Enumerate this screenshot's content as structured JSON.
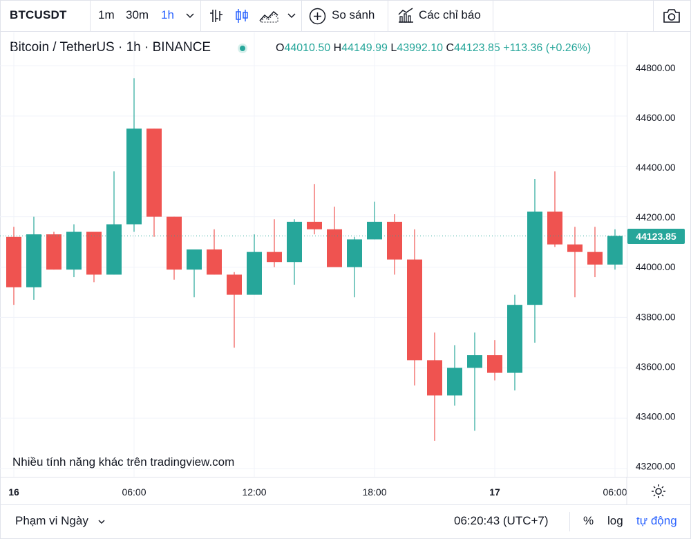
{
  "toolbar": {
    "symbol": "BTCUSDT",
    "intervals": [
      "1m",
      "30m",
      "1h"
    ],
    "active_interval": "1h",
    "compare_label": "So sánh",
    "indicators_label": "Các chỉ báo"
  },
  "legend": {
    "title": "Bitcoin / TetherUS · 1h · BINANCE",
    "open_key": "O",
    "open": "44010.50",
    "high_key": "H",
    "high": "44149.99",
    "low_key": "L",
    "low": "43992.10",
    "close_key": "C",
    "close": "44123.85",
    "change": "+113.36 (+0.26%)"
  },
  "watermark": "Nhiều tính năng khác trên tradingview.com",
  "bottom": {
    "range_label": "Phạm vi Ngày",
    "clock": "06:20:43 (UTC+7)",
    "percent": "%",
    "log": "log",
    "auto": "tự động"
  },
  "colors": {
    "up": "#26a69a",
    "down": "#ef5350",
    "grid": "#f0f3fa",
    "accent": "#2962ff"
  },
  "chart_data": {
    "type": "candlestick",
    "price_labels": [
      "44800.00",
      "44600.00",
      "44400.00",
      "44200.00",
      "44000.00",
      "43800.00",
      "43600.00",
      "43400.00",
      "43200.00"
    ],
    "time_labels": [
      "16",
      "06:00",
      "12:00",
      "18:00",
      "17",
      "06:00"
    ],
    "current_price": "44123.85",
    "ylim": [
      43200,
      44800
    ],
    "candles": [
      {
        "o": 44120,
        "h": 44160,
        "l": 43850,
        "c": 43920
      },
      {
        "o": 43920,
        "h": 44200,
        "l": 43870,
        "c": 44130
      },
      {
        "o": 44130,
        "h": 44140,
        "l": 43990,
        "c": 43990
      },
      {
        "o": 43990,
        "h": 44170,
        "l": 43960,
        "c": 44140
      },
      {
        "o": 44140,
        "h": 44140,
        "l": 43940,
        "c": 43970
      },
      {
        "o": 43970,
        "h": 44380,
        "l": 43970,
        "c": 44170
      },
      {
        "o": 44170,
        "h": 44750,
        "l": 44140,
        "c": 44550
      },
      {
        "o": 44550,
        "h": 44550,
        "l": 44120,
        "c": 44200
      },
      {
        "o": 44200,
        "h": 44200,
        "l": 43950,
        "c": 43990
      },
      {
        "o": 43990,
        "h": 44070,
        "l": 43880,
        "c": 44070
      },
      {
        "o": 44070,
        "h": 44150,
        "l": 43970,
        "c": 43970
      },
      {
        "o": 43970,
        "h": 43980,
        "l": 43680,
        "c": 43890
      },
      {
        "o": 43890,
        "h": 44130,
        "l": 43890,
        "c": 44060
      },
      {
        "o": 44060,
        "h": 44190,
        "l": 44000,
        "c": 44020
      },
      {
        "o": 44020,
        "h": 44190,
        "l": 43930,
        "c": 44180
      },
      {
        "o": 44180,
        "h": 44330,
        "l": 44130,
        "c": 44150
      },
      {
        "o": 44150,
        "h": 44240,
        "l": 44000,
        "c": 44000
      },
      {
        "o": 44000,
        "h": 44120,
        "l": 43880,
        "c": 44110
      },
      {
        "o": 44110,
        "h": 44260,
        "l": 44110,
        "c": 44180
      },
      {
        "o": 44180,
        "h": 44210,
        "l": 43970,
        "c": 44030
      },
      {
        "o": 44030,
        "h": 44150,
        "l": 43530,
        "c": 43630
      },
      {
        "o": 43630,
        "h": 43740,
        "l": 43310,
        "c": 43490
      },
      {
        "o": 43490,
        "h": 43690,
        "l": 43450,
        "c": 43600
      },
      {
        "o": 43600,
        "h": 43740,
        "l": 43350,
        "c": 43650
      },
      {
        "o": 43650,
        "h": 43710,
        "l": 43550,
        "c": 43580
      },
      {
        "o": 43580,
        "h": 43890,
        "l": 43510,
        "c": 43850
      },
      {
        "o": 43850,
        "h": 44350,
        "l": 43700,
        "c": 44220
      },
      {
        "o": 44220,
        "h": 44380,
        "l": 44080,
        "c": 44090
      },
      {
        "o": 44090,
        "h": 44160,
        "l": 43880,
        "c": 44060
      },
      {
        "o": 44060,
        "h": 44160,
        "l": 43960,
        "c": 44010
      },
      {
        "o": 44010,
        "h": 44150,
        "l": 43990,
        "c": 44124
      }
    ]
  }
}
